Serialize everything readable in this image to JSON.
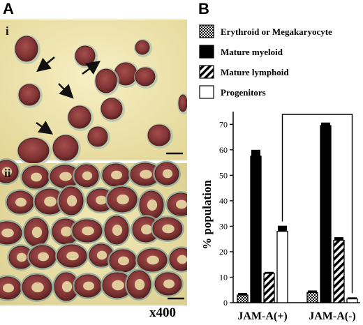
{
  "figure": {
    "panel_a_label": "A",
    "panel_b_label": "B",
    "subpanel_i": "i",
    "subpanel_ii": "ii",
    "magnification": "x400"
  },
  "colors": {
    "micrograph_bg": "#f0e6b0",
    "cell_fill": "#8a3a3a",
    "cell_rim": "#5c2a2a",
    "cytoplasm": "#9fb8a8"
  },
  "chart_data": {
    "type": "bar",
    "title": "",
    "xlabel": "",
    "ylabel": "% population",
    "ylim": [
      0,
      75
    ],
    "yticks": [
      0,
      10,
      20,
      30,
      40,
      50,
      60,
      70
    ],
    "grid": false,
    "legend": "top",
    "categories": [
      "JAM-A(+)",
      "JAM-A(-)"
    ],
    "series": [
      {
        "name": "Erythroid or Megakaryocyte",
        "pattern": "checker",
        "values": [
          3,
          4
        ],
        "errors": [
          0.8,
          0.8
        ]
      },
      {
        "name": "Mature myeloid",
        "pattern": "solid-black",
        "values": [
          57.5,
          69.5
        ],
        "errors": [
          2.5,
          1.2
        ]
      },
      {
        "name": "Mature lymphoid",
        "pattern": "diagonal-stripe",
        "values": [
          11.5,
          24.5
        ],
        "errors": [
          0.6,
          1.2
        ]
      },
      {
        "name": "Progenitors",
        "pattern": "white",
        "values": [
          28,
          1.5
        ],
        "errors": [
          2.2,
          0.6
        ]
      }
    ],
    "bracket": {
      "from": "JAM-A(+)",
      "to": "JAM-A(-)",
      "series": "Progenitors"
    }
  }
}
